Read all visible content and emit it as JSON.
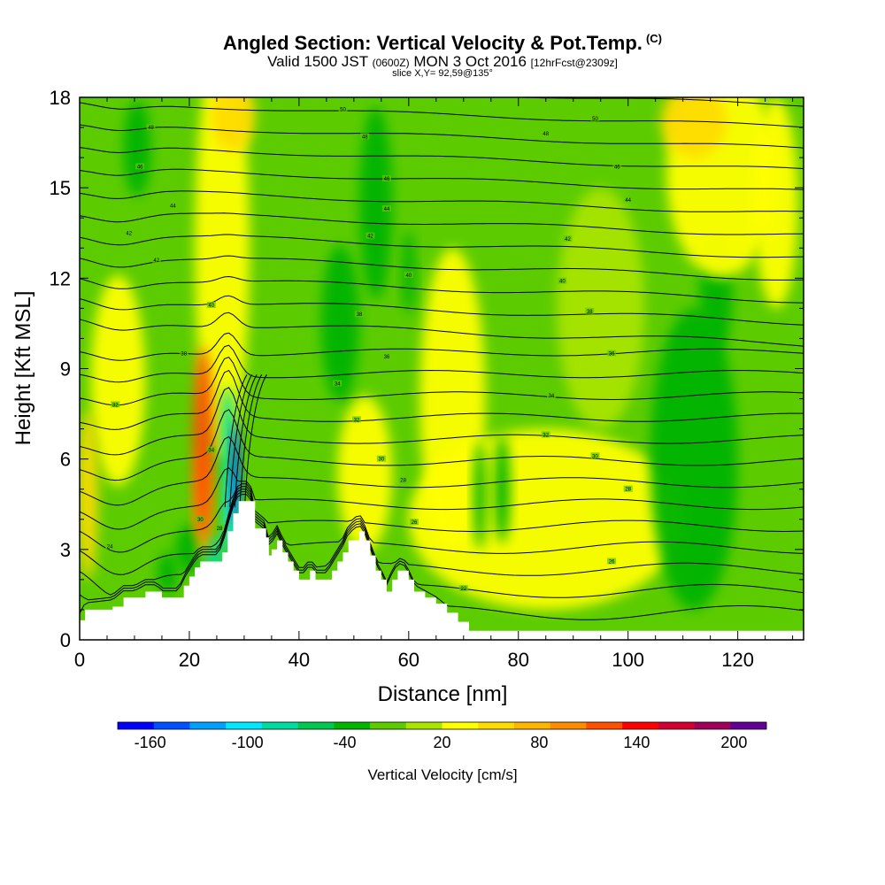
{
  "title": "Angled Section: Vertical Velocity & Pot.Temp.",
  "title_tag": "(C)",
  "subtitle_valid": "Valid 1500 JST",
  "subtitle_utc": "(0600Z)",
  "subtitle_date": "MON 3 Oct 2016",
  "subtitle_fcst": "[12hrFcst@2309z]",
  "slice_label": "slice X,Y= 92,59@135°",
  "colors": {
    "background": "#5ccc00",
    "terrain": "#ffffff",
    "contour": "#000000",
    "palette": [
      "#0000ff",
      "#0050ff",
      "#00a0ff",
      "#00e8ff",
      "#00dca0",
      "#00c850",
      "#00b400",
      "#5ccc00",
      "#a8e400",
      "#ffff00",
      "#ffdc00",
      "#ffb400",
      "#ff8c00",
      "#ff5000",
      "#ff0000",
      "#d20032",
      "#a0005a",
      "#640096"
    ]
  },
  "chart_data": {
    "type": "contour-section",
    "xlabel": "Distance [nm]",
    "ylabel": "Height [Kft MSL]",
    "xlim": [
      0,
      132
    ],
    "ylim": [
      0,
      18
    ],
    "x_ticks": [
      0,
      20,
      40,
      60,
      80,
      100,
      120
    ],
    "y_ticks": [
      0,
      3,
      6,
      9,
      12,
      15,
      18
    ],
    "terrain_profile": [
      [
        0,
        0.65
      ],
      [
        1,
        1
      ],
      [
        6,
        1.1
      ],
      [
        8,
        1.4
      ],
      [
        10,
        1.4
      ],
      [
        12,
        1.6
      ],
      [
        14,
        1.6
      ],
      [
        15,
        1.4
      ],
      [
        18,
        1.4
      ],
      [
        19,
        1.8
      ],
      [
        20,
        2.1
      ],
      [
        21,
        2.4
      ],
      [
        22,
        2.6
      ],
      [
        25,
        2.6
      ],
      [
        26,
        2.9
      ],
      [
        27,
        3.6
      ],
      [
        28,
        4.2
      ],
      [
        29,
        4.6
      ],
      [
        31,
        4.6
      ],
      [
        32,
        3.7
      ],
      [
        34,
        3.4
      ],
      [
        34.5,
        2.8
      ],
      [
        35,
        3.0
      ],
      [
        36,
        3.3
      ],
      [
        37,
        2.9
      ],
      [
        38,
        2.6
      ],
      [
        39,
        2.3
      ],
      [
        40,
        2.0
      ],
      [
        41,
        2.0
      ],
      [
        42,
        2.3
      ],
      [
        43,
        2.0
      ],
      [
        45,
        2.0
      ],
      [
        46,
        2.3
      ],
      [
        47,
        2.6
      ],
      [
        48,
        2.9
      ],
      [
        49,
        3.3
      ],
      [
        51,
        3.6
      ],
      [
        52,
        3.3
      ],
      [
        53,
        2.8
      ],
      [
        54,
        2.3
      ],
      [
        55,
        2.0
      ],
      [
        56,
        1.6
      ],
      [
        57,
        2.0
      ],
      [
        58,
        2.3
      ],
      [
        59,
        2.3
      ],
      [
        60,
        2.0
      ],
      [
        61,
        1.6
      ],
      [
        63,
        1.4
      ],
      [
        65,
        1.2
      ],
      [
        67,
        0.9
      ],
      [
        69,
        0.6
      ],
      [
        71,
        0.3
      ],
      [
        132,
        0.3
      ]
    ],
    "updrafts": [
      {
        "x": 22.5,
        "y": 6.5,
        "dx": 1.8,
        "dy": 3.2,
        "value": 110
      },
      {
        "x": 22.5,
        "y": 4.5,
        "dx": 1.4,
        "dy": 1.8,
        "value": 75
      },
      {
        "x": 1.5,
        "y": 4.8,
        "dx": 1.8,
        "dy": 2.8,
        "value": 45
      },
      {
        "x": 7,
        "y": 8.6,
        "dx": 5,
        "dy": 3.5,
        "value": 25
      },
      {
        "x": 26,
        "y": 13,
        "dx": 5,
        "dy": 7,
        "value": 25
      },
      {
        "x": 28,
        "y": 17.4,
        "dx": 4,
        "dy": 1.2,
        "value": 45
      },
      {
        "x": 52,
        "y": 5.5,
        "dx": 5,
        "dy": 2.6,
        "value": 25
      },
      {
        "x": 117,
        "y": 15.5,
        "dx": 10,
        "dy": 3.5,
        "value": 35
      },
      {
        "x": 127,
        "y": 14.5,
        "dx": 4,
        "dy": 3.5,
        "value": 40
      },
      {
        "x": 112,
        "y": 17.2,
        "dx": 6,
        "dy": 1.2,
        "value": 45
      },
      {
        "x": 85,
        "y": 4,
        "dx": 25,
        "dy": 3,
        "value": 20
      },
      {
        "x": 68,
        "y": 8,
        "dx": 6,
        "dy": 5,
        "value": 20
      },
      {
        "x": 95,
        "y": 11,
        "dx": 8,
        "dy": 4,
        "value": 10
      }
    ],
    "downdrafts": [
      {
        "x": 28.5,
        "y": 5.5,
        "dx": 0.8,
        "dy": 1.7,
        "value": -140
      },
      {
        "x": 27.5,
        "y": 4.3,
        "dx": 1.2,
        "dy": 1.4,
        "value": -95
      },
      {
        "x": 27,
        "y": 6.8,
        "dx": 1.3,
        "dy": 1.6,
        "value": -75
      },
      {
        "x": 24.5,
        "y": 2.8,
        "dx": 1.6,
        "dy": 0.7,
        "value": -70
      },
      {
        "x": 20,
        "y": 3.0,
        "dx": 2.5,
        "dy": 0.8,
        "value": -45
      },
      {
        "x": 47.5,
        "y": 10.5,
        "dx": 3.5,
        "dy": 2.6,
        "value": -25
      },
      {
        "x": 54,
        "y": 14.5,
        "dx": 3,
        "dy": 3.2,
        "value": -25
      },
      {
        "x": 60,
        "y": 12.2,
        "dx": 1.2,
        "dy": 1.4,
        "value": -25
      },
      {
        "x": 10.5,
        "y": 16.3,
        "dx": 2.5,
        "dy": 1.6,
        "value": -25
      },
      {
        "x": 112,
        "y": 6,
        "dx": 8,
        "dy": 5,
        "value": -25
      },
      {
        "x": 116,
        "y": 11.5,
        "dx": 3,
        "dy": 2,
        "value": -25
      },
      {
        "x": 73,
        "y": 4.8,
        "dx": 1.2,
        "dy": 1.8,
        "value": -25
      },
      {
        "x": 77,
        "y": 5,
        "dx": 1.5,
        "dy": 1.8,
        "value": -25
      },
      {
        "x": 16,
        "y": 2.2,
        "dx": 1.8,
        "dy": 0.7,
        "value": -25
      }
    ],
    "theta_labels": [
      {
        "x": 13,
        "y": 17,
        "text": "48"
      },
      {
        "x": 11,
        "y": 15.7,
        "text": "46"
      },
      {
        "x": 17,
        "y": 14.4,
        "text": "44"
      },
      {
        "x": 9,
        "y": 13.5,
        "text": "42"
      },
      {
        "x": 14,
        "y": 12.6,
        "text": "42"
      },
      {
        "x": 24,
        "y": 11.1,
        "text": "40"
      },
      {
        "x": 19,
        "y": 9.5,
        "text": "38"
      },
      {
        "x": 6.5,
        "y": 7.8,
        "text": "32"
      },
      {
        "x": 24,
        "y": 6.3,
        "text": "34"
      },
      {
        "x": 22,
        "y": 4.0,
        "text": "30"
      },
      {
        "x": 25.5,
        "y": 3.7,
        "text": "28"
      },
      {
        "x": 5.5,
        "y": 3.1,
        "text": "24"
      },
      {
        "x": 48,
        "y": 17.6,
        "text": "50"
      },
      {
        "x": 52,
        "y": 16.7,
        "text": "48"
      },
      {
        "x": 56,
        "y": 15.3,
        "text": "46"
      },
      {
        "x": 56,
        "y": 14.3,
        "text": "44"
      },
      {
        "x": 53,
        "y": 13.4,
        "text": "42"
      },
      {
        "x": 60,
        "y": 12.1,
        "text": "40"
      },
      {
        "x": 51,
        "y": 10.8,
        "text": "38"
      },
      {
        "x": 56,
        "y": 9.4,
        "text": "36"
      },
      {
        "x": 47,
        "y": 8.5,
        "text": "34"
      },
      {
        "x": 50.5,
        "y": 7.3,
        "text": "32"
      },
      {
        "x": 55,
        "y": 6.0,
        "text": "30"
      },
      {
        "x": 59,
        "y": 5.3,
        "text": "28"
      },
      {
        "x": 61,
        "y": 3.9,
        "text": "26"
      },
      {
        "x": 70,
        "y": 1.7,
        "text": "22"
      },
      {
        "x": 94,
        "y": 17.3,
        "text": "50"
      },
      {
        "x": 85,
        "y": 16.8,
        "text": "48"
      },
      {
        "x": 98,
        "y": 15.7,
        "text": "46"
      },
      {
        "x": 100,
        "y": 14.6,
        "text": "44"
      },
      {
        "x": 89,
        "y": 13.3,
        "text": "42"
      },
      {
        "x": 88,
        "y": 11.9,
        "text": "40"
      },
      {
        "x": 93,
        "y": 10.9,
        "text": "38"
      },
      {
        "x": 97,
        "y": 9.5,
        "text": "36"
      },
      {
        "x": 86,
        "y": 8.1,
        "text": "34"
      },
      {
        "x": 85,
        "y": 6.8,
        "text": "32"
      },
      {
        "x": 94,
        "y": 6.1,
        "text": "30"
      },
      {
        "x": 100,
        "y": 5.0,
        "text": "28"
      },
      {
        "x": 97,
        "y": 2.6,
        "text": "26"
      }
    ]
  },
  "colorbar": {
    "label": "Vertical Velocity [cm/s]",
    "min": -180,
    "max": 220,
    "ticks": [
      "-160",
      "-100",
      "-40",
      "20",
      "80",
      "140",
      "200"
    ]
  }
}
